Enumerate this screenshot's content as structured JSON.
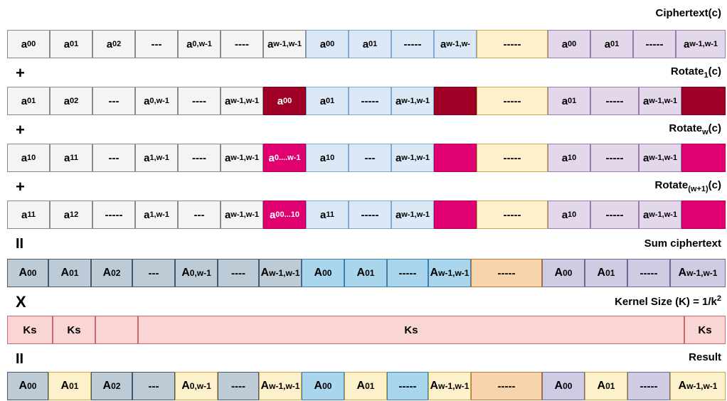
{
  "labels": {
    "ciphertext": "Ciphertext(c)",
    "rotate1_pre": "Rotate",
    "rotate1_sub": "1",
    "rotate1_post": "(c)",
    "rotatew_pre": "Rotate",
    "rotatew_sub": "w",
    "rotatew_post": "(c)",
    "rotatew1_pre": "Rotate",
    "rotatew1_sub": "(w+1)",
    "rotatew1_post": "(c)",
    "sum": "Sum ciphertext",
    "kernel_pre": "Kernel Size (K) = 1/k",
    "kernel_sup": "2",
    "result": "Result"
  },
  "operators": {
    "plus1": "+",
    "plus2": "+",
    "plus3": "+",
    "eq1": "II",
    "times": "X",
    "eq2": "II"
  },
  "colors": {
    "grey": "#f4f4f4",
    "blue": "#dce8f6",
    "yellow": "#fdf1cc",
    "purple": "#e3d7ea",
    "dark_red": "#a00025",
    "magenta": "#e0006f",
    "sum_grey": "#bccbd6",
    "sum_blue": "#a9d6ec",
    "sum_orange": "#f8d4ac",
    "sum_purple": "#cfcbe2",
    "kernel": "#f9d5d4"
  },
  "rows": {
    "ciphertext": [
      {
        "b": "a",
        "s": "00"
      },
      {
        "b": "a",
        "s": "01"
      },
      {
        "b": "a",
        "s": "02"
      },
      {
        "b": "---",
        "s": ""
      },
      {
        "b": "a",
        "s": "0,w-1"
      },
      {
        "b": "----",
        "s": ""
      },
      {
        "b": "a",
        "s": "w-1,w-1"
      },
      {
        "b": "a",
        "s": "00"
      },
      {
        "b": "a",
        "s": "01"
      },
      {
        "b": "-----",
        "s": ""
      },
      {
        "b": "a",
        "s": "w-1,w-"
      },
      {
        "b": "-----",
        "s": ""
      },
      {
        "b": "a",
        "s": "00"
      },
      {
        "b": "a",
        "s": "01"
      },
      {
        "b": "-----",
        "s": ""
      },
      {
        "b": "a",
        "s": "w-1,w-1"
      }
    ],
    "rotate1": [
      {
        "b": "a",
        "s": "01"
      },
      {
        "b": "a",
        "s": "02"
      },
      {
        "b": "---",
        "s": ""
      },
      {
        "b": "a",
        "s": "0,w-1"
      },
      {
        "b": "----",
        "s": ""
      },
      {
        "b": "a",
        "s": "w-1,w-1"
      },
      {
        "b": "a",
        "s": "00"
      },
      {
        "b": "a",
        "s": "01"
      },
      {
        "b": "-----",
        "s": ""
      },
      {
        "b": "a",
        "s": "w-1,w-1"
      },
      {
        "b": "",
        "s": ""
      },
      {
        "b": "-----",
        "s": ""
      },
      {
        "b": "a",
        "s": "01"
      },
      {
        "b": "-----",
        "s": ""
      },
      {
        "b": "a",
        "s": "w-1,w-1"
      },
      {
        "b": "",
        "s": ""
      }
    ],
    "rotatew": [
      {
        "b": "a",
        "s": "10"
      },
      {
        "b": "a",
        "s": "11"
      },
      {
        "b": "---",
        "s": ""
      },
      {
        "b": "a",
        "s": "1,w-1"
      },
      {
        "b": "----",
        "s": ""
      },
      {
        "b": "a",
        "s": "w-1,w-1"
      },
      {
        "b": "a",
        "s": "0....w-1"
      },
      {
        "b": "a",
        "s": "10"
      },
      {
        "b": "---",
        "s": ""
      },
      {
        "b": "a",
        "s": "w-1,w-1"
      },
      {
        "b": "",
        "s": ""
      },
      {
        "b": "-----",
        "s": ""
      },
      {
        "b": "a",
        "s": "10"
      },
      {
        "b": "-----",
        "s": ""
      },
      {
        "b": "a",
        "s": "w-1,w-1"
      },
      {
        "b": "",
        "s": ""
      }
    ],
    "rotatew1": [
      {
        "b": "a",
        "s": "11"
      },
      {
        "b": "a",
        "s": "12"
      },
      {
        "b": "-----",
        "s": ""
      },
      {
        "b": "a",
        "s": "1,w-1"
      },
      {
        "b": "---",
        "s": ""
      },
      {
        "b": "a",
        "s": "w-1,w-1"
      },
      {
        "b": "a",
        "s": "00...10"
      },
      {
        "b": "a",
        "s": "11"
      },
      {
        "b": "-----",
        "s": ""
      },
      {
        "b": "a",
        "s": "w-1,w-1"
      },
      {
        "b": "",
        "s": ""
      },
      {
        "b": "-----",
        "s": ""
      },
      {
        "b": "a",
        "s": "10"
      },
      {
        "b": "-----",
        "s": ""
      },
      {
        "b": "a",
        "s": "w-1,w-1"
      },
      {
        "b": "",
        "s": ""
      }
    ],
    "sum": [
      {
        "b": "A",
        "s": "00"
      },
      {
        "b": "A",
        "s": "01"
      },
      {
        "b": "A",
        "s": "02"
      },
      {
        "b": "---",
        "s": ""
      },
      {
        "b": "A",
        "s": "0,w-1"
      },
      {
        "b": "----",
        "s": ""
      },
      {
        "b": "A",
        "s": "w-1,w-1"
      },
      {
        "b": "A",
        "s": "00"
      },
      {
        "b": "A",
        "s": "01"
      },
      {
        "b": "-----",
        "s": ""
      },
      {
        "b": "A",
        "s": "w-1,w-1"
      },
      {
        "b": "-----",
        "s": ""
      },
      {
        "b": "A",
        "s": "00"
      },
      {
        "b": "A",
        "s": "01"
      },
      {
        "b": "-----",
        "s": ""
      },
      {
        "b": "A",
        "s": "w-1,w-1"
      }
    ],
    "kernel": [
      {
        "b": "Ks",
        "s": ""
      },
      {
        "b": "Ks",
        "s": ""
      },
      {
        "b": "",
        "s": ""
      },
      {
        "b": "Ks",
        "s": ""
      },
      {
        "b": "Ks",
        "s": ""
      }
    ],
    "result": [
      {
        "b": "A",
        "s": "00"
      },
      {
        "b": "A",
        "s": "01"
      },
      {
        "b": "A",
        "s": "02"
      },
      {
        "b": "---",
        "s": ""
      },
      {
        "b": "A",
        "s": "0,w-1"
      },
      {
        "b": "----",
        "s": ""
      },
      {
        "b": "A",
        "s": "w-1,w-1"
      },
      {
        "b": "A",
        "s": "00"
      },
      {
        "b": "A",
        "s": "01"
      },
      {
        "b": "-----",
        "s": ""
      },
      {
        "b": "A",
        "s": "w-1,w-1"
      },
      {
        "b": "-----",
        "s": ""
      },
      {
        "b": "A",
        "s": "00"
      },
      {
        "b": "A",
        "s": "01"
      },
      {
        "b": "-----",
        "s": ""
      },
      {
        "b": "A",
        "s": "w-1,w-1"
      }
    ]
  }
}
